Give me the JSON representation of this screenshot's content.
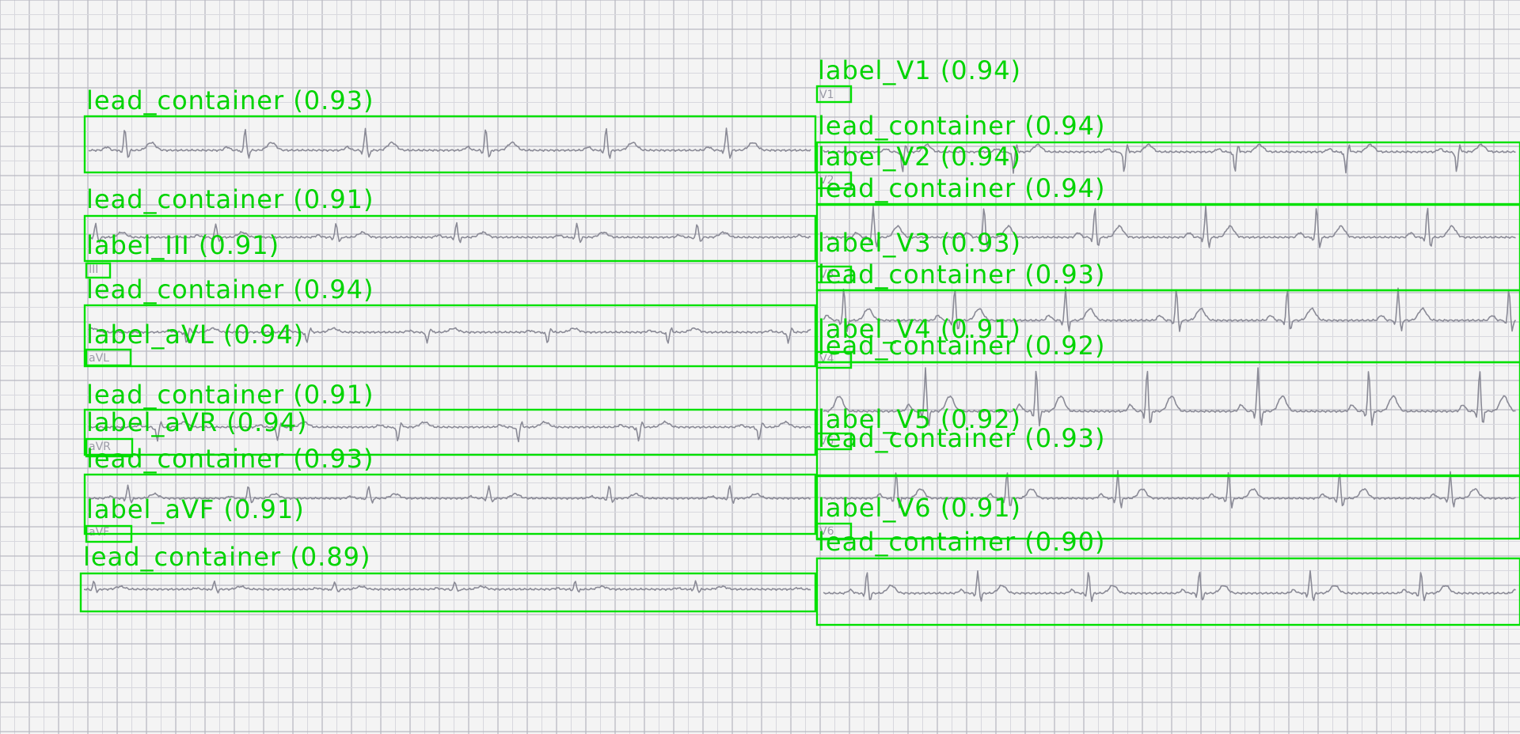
{
  "image": {
    "description": "Scanned 12-lead ECG on grid paper with object-detection overlays",
    "box_color": "#00e000",
    "text_color": "#00d400",
    "paper_color": "#f4f4f4",
    "grid_color": "#c4c4cc",
    "trace_color": "#8a8a96"
  },
  "detections": {
    "lead_containers": [
      {
        "label": "lead_container (0.93)"
      },
      {
        "label": "lead_container (0.91)"
      },
      {
        "label": "lead_container (0.94)"
      },
      {
        "label": "lead_container (0.91)"
      },
      {
        "label": "lead_container (0.93)"
      },
      {
        "label": "lead_container (0.89)"
      },
      {
        "label": "lead_container (0.94)"
      },
      {
        "label": "lead_container (0.94)"
      },
      {
        "label": "lead_container (0.93)"
      },
      {
        "label": "lead_container (0.92)"
      },
      {
        "label": "lead_container (0.93)"
      },
      {
        "label": "lead_container (0.90)"
      }
    ],
    "lead_labels": [
      {
        "label": "label_III (0.91)",
        "printed": "III"
      },
      {
        "label": "label_aVL (0.94)",
        "printed": "aVL"
      },
      {
        "label": "label_aVR (0.94)",
        "printed": "aVR"
      },
      {
        "label": "label_aVF (0.91)",
        "printed": "aVF"
      },
      {
        "label": "label_V1 (0.94)",
        "printed": "V1"
      },
      {
        "label": "label_V2 (0.94)",
        "printed": "V2"
      },
      {
        "label": "label_V3 (0.93)",
        "printed": "V3"
      },
      {
        "label": "label_V4 (0.91)",
        "printed": "V4"
      },
      {
        "label": "label_V5 (0.92)",
        "printed": "V5"
      },
      {
        "label": "label_V6 (0.91)",
        "printed": "V6"
      }
    ]
  }
}
